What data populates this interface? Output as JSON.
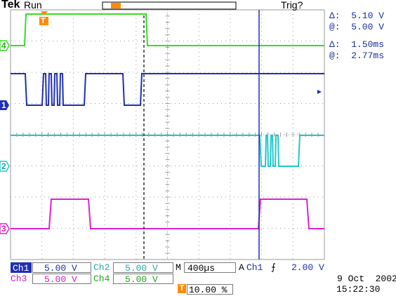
{
  "header": {
    "brand": "Tek",
    "state": "Run",
    "trigger_status": "Trig?"
  },
  "measurements": {
    "voltage_delta": "Δ:  5.10 V",
    "voltage_at": "@:  5.00 V",
    "time_delta": "Δ:  1.50ms",
    "time_at": "@:  2.77ms"
  },
  "channels": [
    {
      "id": "4",
      "color": "#33dd22"
    },
    {
      "id": "1",
      "color": "#1f2fb4"
    },
    {
      "id": "2",
      "color": "#22c8c8"
    },
    {
      "id": "3",
      "color": "#dd22cc"
    }
  ],
  "trigger_marker": "T",
  "settings": {
    "ch1_label": "Ch1",
    "ch1_scale": "5.00 V",
    "ch2_label": "Ch2",
    "ch2_scale": "5.00 V",
    "ch3_label": "Ch3",
    "ch3_scale": "5.00 V",
    "ch4_label": "Ch4",
    "ch4_scale": "5.00 V",
    "timebase_prefix": "M",
    "timebase": "400µs",
    "trigger_mode": "A",
    "trigger_source": "Ch1",
    "trigger_slope": "⨍",
    "trigger_level": "2.00 V",
    "trigger_position": "10.00 %"
  },
  "datetime": {
    "date": "9 Oct  2002",
    "time": "15:22:30"
  },
  "colors": {
    "grid": "#9a9a9a",
    "cursor": "#1f2fb4",
    "measure_text": "#1c2fa0",
    "trigger_orange": "#ff8c00"
  }
}
